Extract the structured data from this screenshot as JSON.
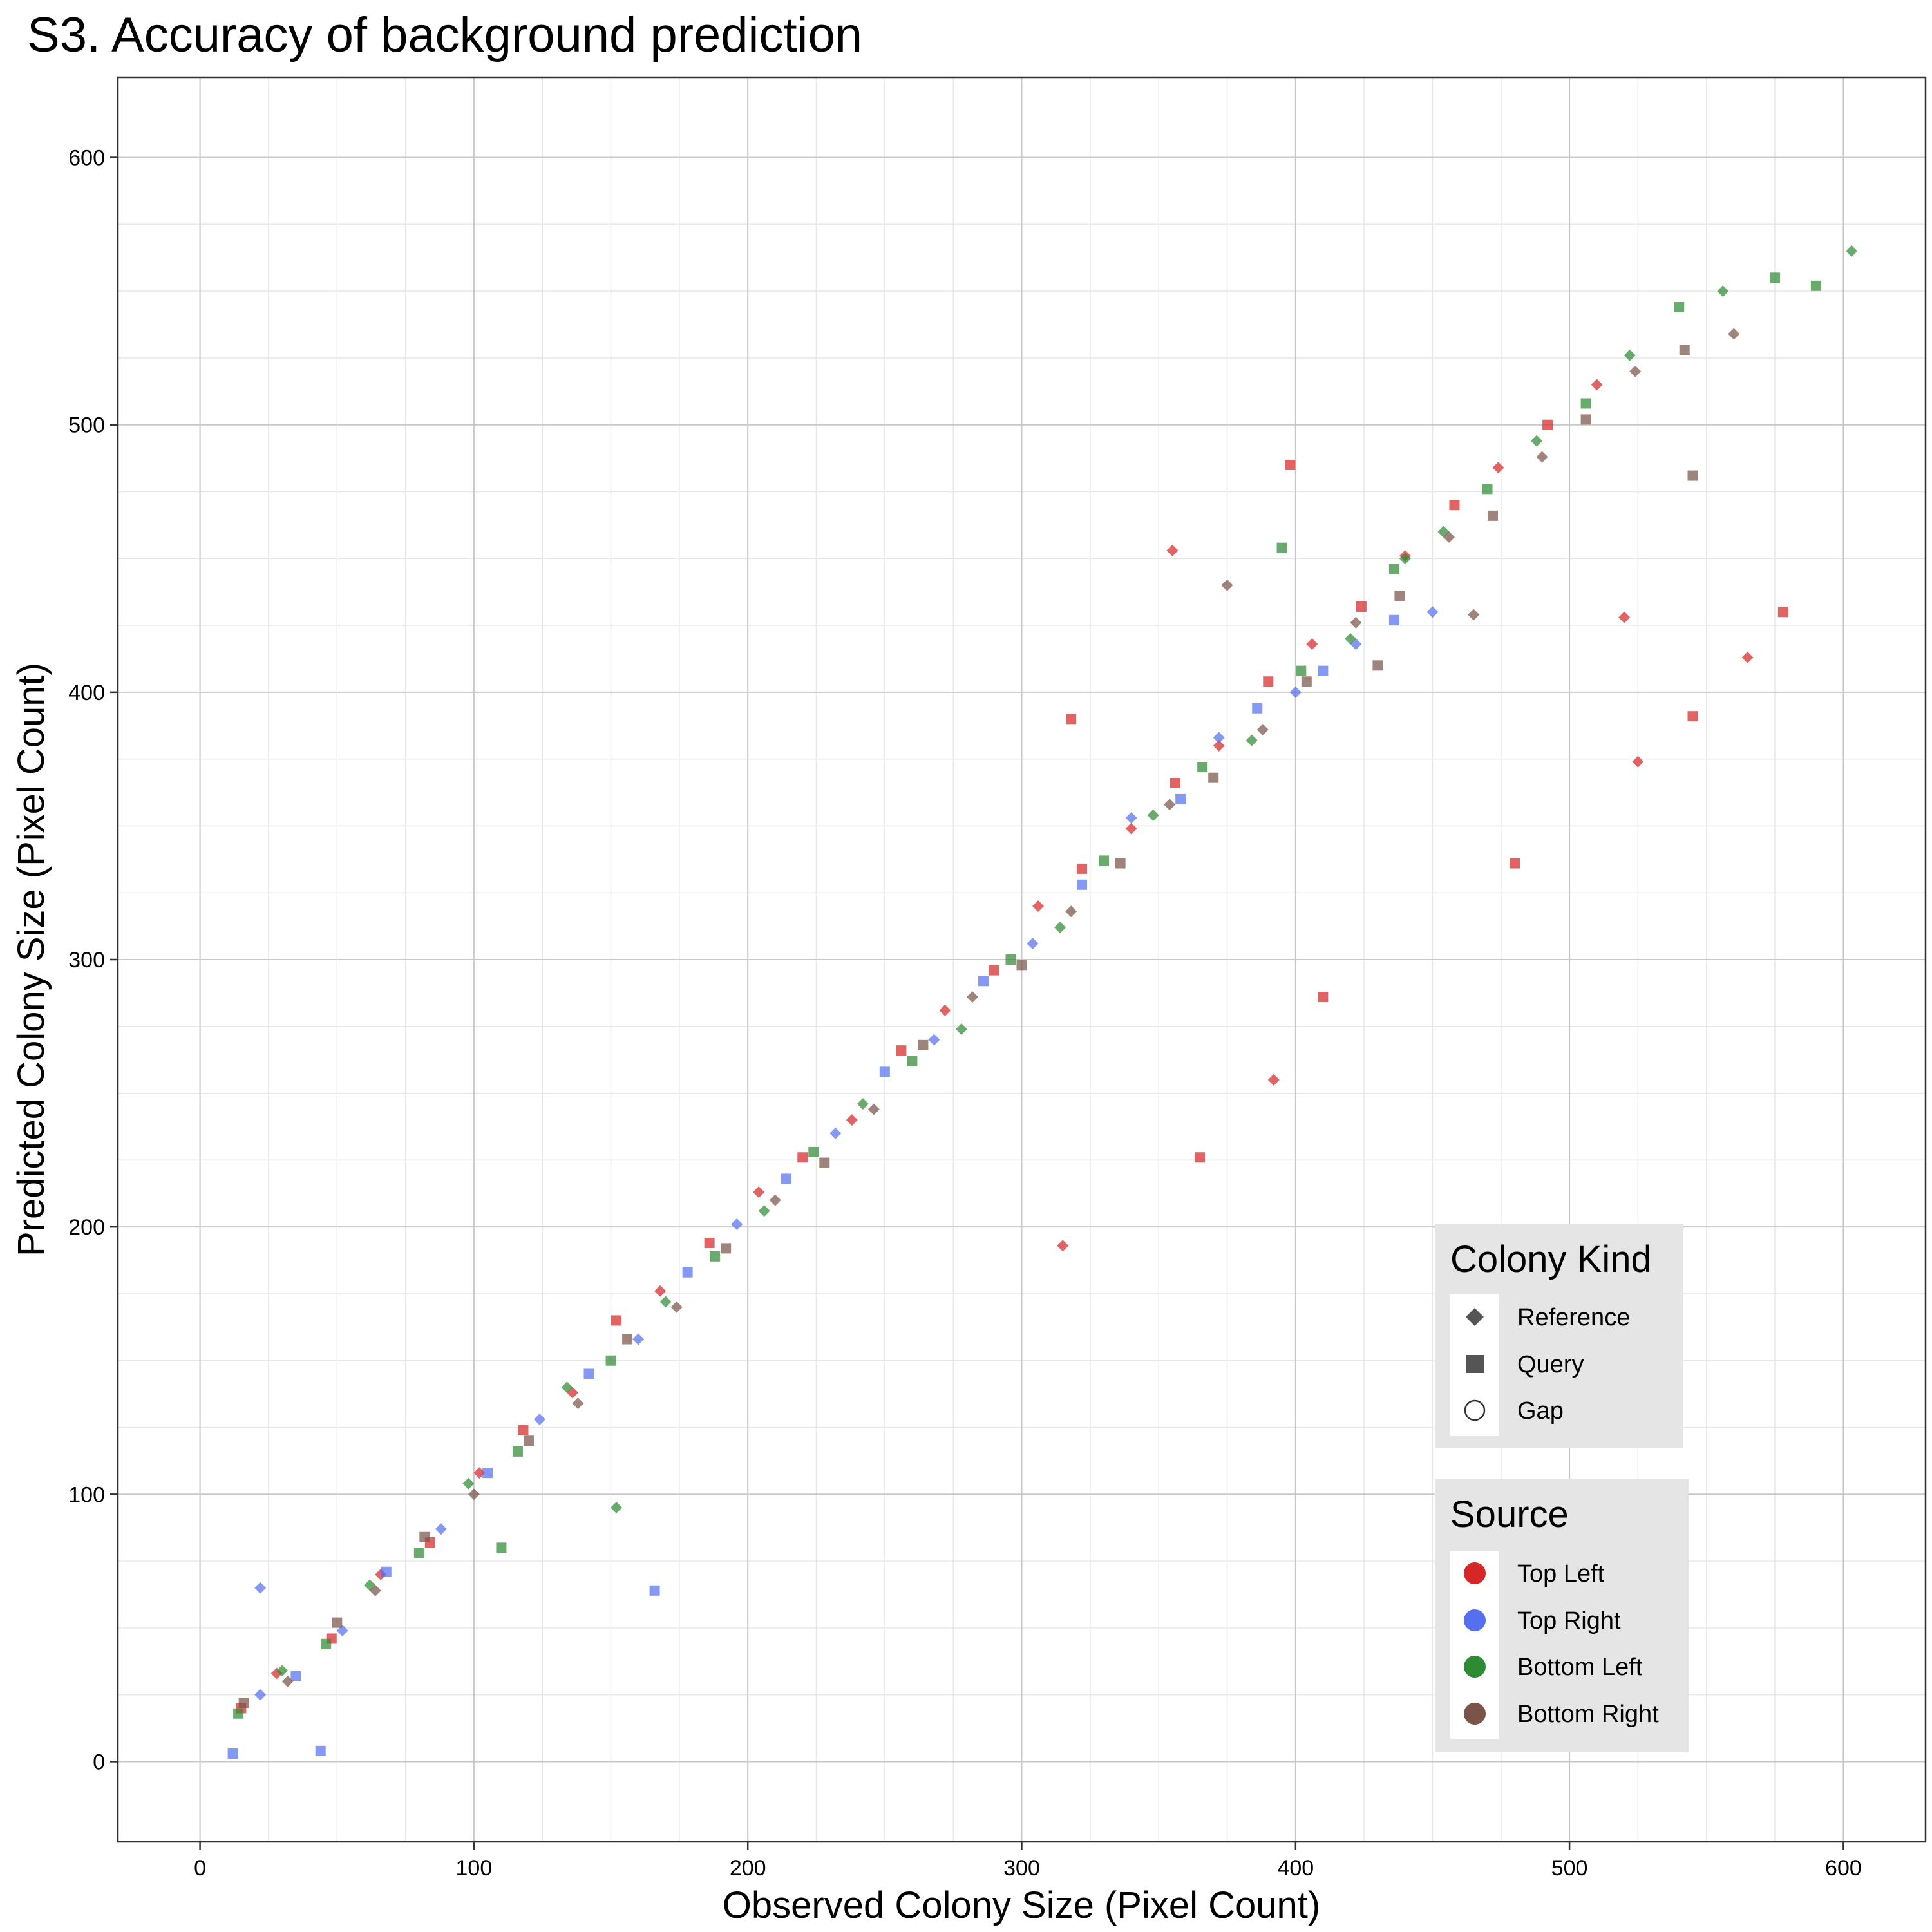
{
  "chart_data": {
    "type": "scatter",
    "title": "S3. Accuracy of background prediction",
    "xlabel": "Observed Colony Size (Pixel Count)",
    "ylabel": "Predicted Colony Size (Pixel Count)",
    "xlim": [
      -30,
      630
    ],
    "ylim": [
      -30,
      630
    ],
    "xticks": [
      0,
      100,
      200,
      300,
      400,
      500,
      600
    ],
    "yticks": [
      0,
      100,
      200,
      300,
      400,
      500,
      600
    ],
    "xtick_labels": [
      "0",
      "100",
      "200",
      "300",
      "400",
      "500",
      "600"
    ],
    "ytick_labels": [
      "0",
      "100",
      "200",
      "300",
      "400",
      "500",
      "600"
    ],
    "grid": true,
    "legends": [
      {
        "title": "Colony Kind",
        "placement": "bottom-right",
        "entries": [
          {
            "label": "Reference",
            "shape": "diamond"
          },
          {
            "label": "Query",
            "shape": "square"
          },
          {
            "label": "Gap",
            "shape": "circle-open"
          }
        ]
      },
      {
        "title": "Source",
        "placement": "bottom-right",
        "entries": [
          {
            "label": "Top Left",
            "color": "#d62728"
          },
          {
            "label": "Top Right",
            "color": "#5470f0"
          },
          {
            "label": "Bottom Left",
            "color": "#2f8a34"
          },
          {
            "label": "Bottom Right",
            "color": "#7a5448"
          }
        ]
      }
    ],
    "series": [
      {
        "source": "Top Left",
        "color": "#d62728",
        "points": [
          [
            15,
            20
          ],
          [
            28,
            33
          ],
          [
            48,
            46
          ],
          [
            66,
            70
          ],
          [
            84,
            82
          ],
          [
            102,
            108
          ],
          [
            118,
            124
          ],
          [
            136,
            138
          ],
          [
            152,
            165
          ],
          [
            168,
            176
          ],
          [
            186,
            194
          ],
          [
            204,
            213
          ],
          [
            220,
            226
          ],
          [
            238,
            240
          ],
          [
            256,
            266
          ],
          [
            272,
            281
          ],
          [
            290,
            296
          ],
          [
            306,
            320
          ],
          [
            322,
            334
          ],
          [
            340,
            349
          ],
          [
            356,
            366
          ],
          [
            372,
            380
          ],
          [
            390,
            404
          ],
          [
            406,
            418
          ],
          [
            424,
            432
          ],
          [
            440,
            451
          ],
          [
            458,
            470
          ],
          [
            474,
            484
          ],
          [
            492,
            500
          ],
          [
            510,
            515
          ],
          [
            365,
            226
          ],
          [
            392,
            255
          ],
          [
            410,
            286
          ],
          [
            315,
            193
          ],
          [
            480,
            336
          ],
          [
            525,
            374
          ],
          [
            545,
            391
          ],
          [
            565,
            413
          ],
          [
            578,
            430
          ],
          [
            520,
            428
          ],
          [
            398,
            485
          ],
          [
            355,
            453
          ],
          [
            318,
            390
          ]
        ]
      },
      {
        "source": "Top Right",
        "color": "#5470f0",
        "points": [
          [
            12,
            3
          ],
          [
            22,
            25
          ],
          [
            35,
            32
          ],
          [
            52,
            49
          ],
          [
            68,
            71
          ],
          [
            88,
            87
          ],
          [
            105,
            108
          ],
          [
            124,
            128
          ],
          [
            142,
            145
          ],
          [
            160,
            158
          ],
          [
            178,
            183
          ],
          [
            196,
            201
          ],
          [
            214,
            218
          ],
          [
            232,
            235
          ],
          [
            250,
            258
          ],
          [
            268,
            270
          ],
          [
            286,
            292
          ],
          [
            304,
            306
          ],
          [
            322,
            328
          ],
          [
            340,
            353
          ],
          [
            358,
            360
          ],
          [
            372,
            383
          ],
          [
            386,
            394
          ],
          [
            400,
            400
          ],
          [
            410,
            408
          ],
          [
            422,
            418
          ],
          [
            436,
            427
          ],
          [
            450,
            430
          ],
          [
            166,
            64
          ],
          [
            22,
            65
          ],
          [
            44,
            4
          ]
        ]
      },
      {
        "source": "Bottom Left",
        "color": "#2f8a34",
        "points": [
          [
            14,
            18
          ],
          [
            30,
            34
          ],
          [
            46,
            44
          ],
          [
            62,
            66
          ],
          [
            80,
            78
          ],
          [
            98,
            104
          ],
          [
            116,
            116
          ],
          [
            134,
            140
          ],
          [
            150,
            150
          ],
          [
            170,
            172
          ],
          [
            188,
            189
          ],
          [
            206,
            206
          ],
          [
            224,
            228
          ],
          [
            242,
            246
          ],
          [
            260,
            262
          ],
          [
            278,
            274
          ],
          [
            296,
            300
          ],
          [
            314,
            312
          ],
          [
            330,
            337
          ],
          [
            348,
            354
          ],
          [
            366,
            372
          ],
          [
            384,
            382
          ],
          [
            402,
            408
          ],
          [
            420,
            420
          ],
          [
            436,
            446
          ],
          [
            454,
            460
          ],
          [
            470,
            476
          ],
          [
            488,
            494
          ],
          [
            506,
            508
          ],
          [
            522,
            526
          ],
          [
            540,
            544
          ],
          [
            556,
            550
          ],
          [
            575,
            555
          ],
          [
            603,
            565
          ],
          [
            590,
            552
          ],
          [
            440,
            450
          ],
          [
            395,
            454
          ],
          [
            152,
            95
          ],
          [
            110,
            80
          ]
        ]
      },
      {
        "source": "Bottom Right",
        "color": "#7a5448",
        "points": [
          [
            16,
            22
          ],
          [
            32,
            30
          ],
          [
            50,
            52
          ],
          [
            64,
            64
          ],
          [
            82,
            84
          ],
          [
            100,
            100
          ],
          [
            120,
            120
          ],
          [
            138,
            134
          ],
          [
            156,
            158
          ],
          [
            174,
            170
          ],
          [
            192,
            192
          ],
          [
            210,
            210
          ],
          [
            228,
            224
          ],
          [
            246,
            244
          ],
          [
            264,
            268
          ],
          [
            282,
            286
          ],
          [
            300,
            298
          ],
          [
            318,
            318
          ],
          [
            336,
            336
          ],
          [
            354,
            358
          ],
          [
            370,
            368
          ],
          [
            388,
            386
          ],
          [
            404,
            404
          ],
          [
            422,
            426
          ],
          [
            438,
            436
          ],
          [
            456,
            458
          ],
          [
            472,
            466
          ],
          [
            490,
            488
          ],
          [
            506,
            502
          ],
          [
            524,
            520
          ],
          [
            542,
            528
          ],
          [
            560,
            534
          ],
          [
            545,
            481
          ],
          [
            465,
            429
          ],
          [
            430,
            410
          ],
          [
            375,
            440
          ]
        ]
      }
    ]
  }
}
